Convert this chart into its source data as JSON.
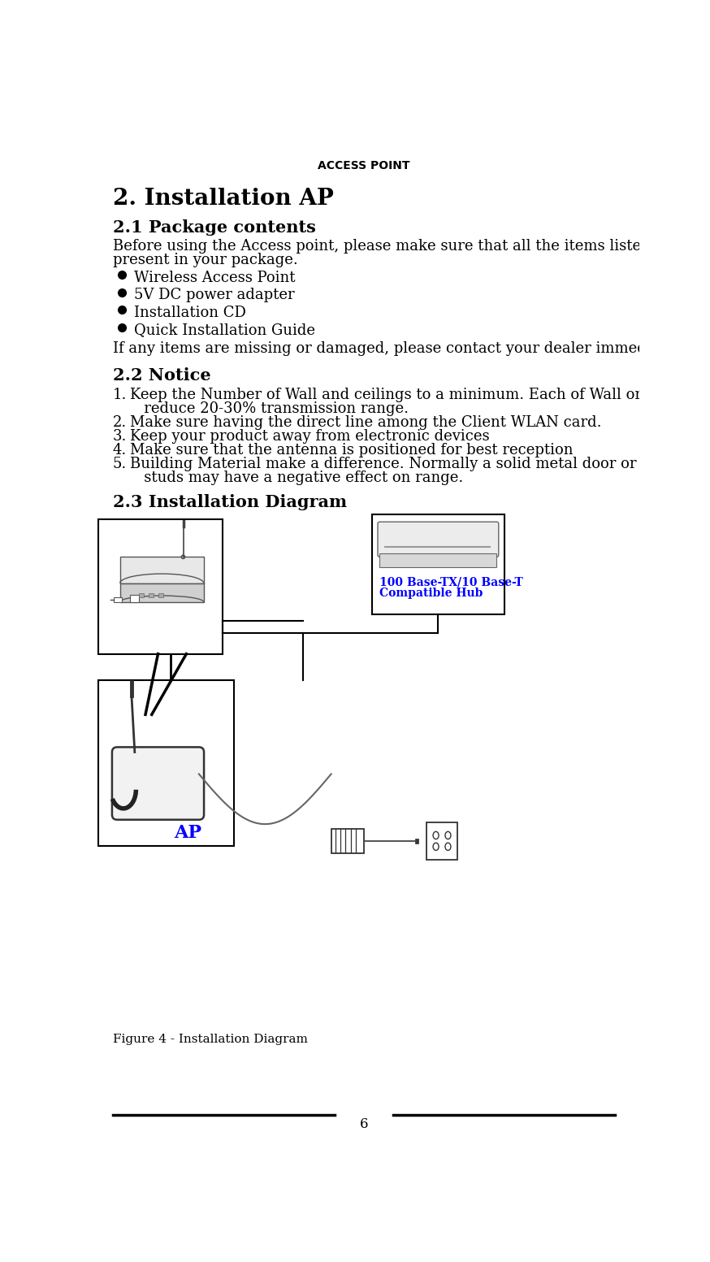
{
  "page_title": "ACCESS POINT",
  "section2_title": "2. Installation AP",
  "section21_title": "2.1 Package contents",
  "body1": "Before using the Access point, please make sure that all the items listed below are",
  "body2": "present in your package.",
  "bullet_items": [
    "Wireless Access Point",
    "5V DC power adapter",
    "Installation CD",
    "Quick Installation Guide"
  ],
  "section21_footer": "If any items are missing or damaged, please contact your dealer immediately.",
  "section22_title": "2.2 Notice",
  "notice_lines": [
    [
      "1.",
      "Keep the Number of Wall and ceilings to a minimum. Each of Wall or Ceiling will"
    ],
    [
      " ",
      "   reduce 20-30% transmission range."
    ],
    [
      "2.",
      "Make sure having the direct line among the Client WLAN card."
    ],
    [
      "3.",
      "Keep your product away from electronic devices"
    ],
    [
      "4.",
      "Make sure that the antenna is positioned for best reception"
    ],
    [
      "5.",
      "Building Material make a difference. Normally a solid metal door or aluminum"
    ],
    [
      " ",
      "   studs may have a negative effect on range."
    ]
  ],
  "section23_title": "2.3 Installation Diagram",
  "figure_caption": "Figure 4 - Installation Diagram",
  "page_number": "6",
  "bg_color": "#ffffff",
  "text_color": "#000000",
  "blue_color": "#0000ff",
  "title_fontsize": 10,
  "body_fontsize": 13,
  "heading1_fontsize": 20,
  "heading2_fontsize": 15
}
